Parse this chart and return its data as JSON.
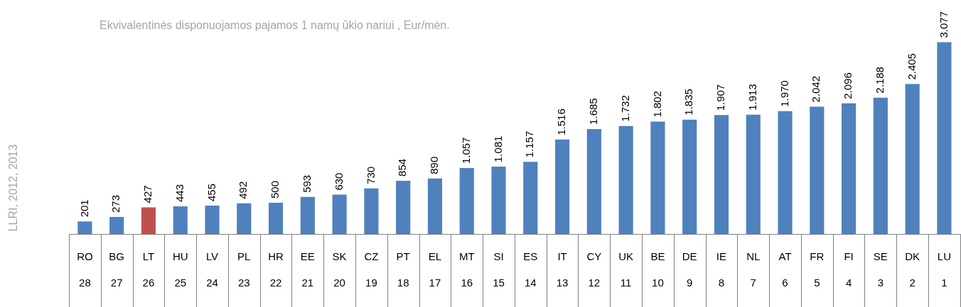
{
  "chart_data": {
    "type": "bar",
    "title": "Ekvivalentinės disponuojamos pajamos 1 namų ūkio nariui , Eur/mėn.",
    "annotations": [
      "LLRI, 2012, 2013"
    ],
    "categories": [
      "RO\n28",
      "BG\n27",
      "LT\n26",
      "HU\n25",
      "LV\n24",
      "PL\n23",
      "HR\n22",
      "EE\n21",
      "SK\n20",
      "CZ\n19",
      "PT\n18",
      "EL\n17",
      "MT\n16",
      "SI\n15",
      "ES\n14",
      "IT\n13",
      "CY\n12",
      "UK\n11",
      "BE\n10",
      "DE\n9",
      "IE\n8",
      "NL\n7",
      "AT\n6",
      "FR\n5",
      "FI\n4",
      "SE\n3",
      "DK\n2",
      "LU\n1"
    ],
    "values": [
      201,
      273,
      427,
      443,
      455,
      492,
      500,
      593,
      630,
      730,
      854,
      890,
      1057,
      1081,
      1157,
      1516,
      1685,
      1732,
      1802,
      1835,
      1907,
      1913,
      1970,
      2042,
      2096,
      2188,
      2405,
      3077
    ],
    "value_labels": [
      "201",
      "273",
      "427",
      "443",
      "455",
      "492",
      "500",
      "593",
      "630",
      "730",
      "854",
      "890",
      "1.057",
      "1.081",
      "1.157",
      "1.516",
      "1.685",
      "1.732",
      "1.802",
      "1.835",
      "1.907",
      "1.913",
      "1.970",
      "2.042",
      "2.096",
      "2.188",
      "2.405",
      "3.077"
    ],
    "colors": [
      "#4f81bd",
      "#4f81bd",
      "#c0504d",
      "#4f81bd",
      "#4f81bd",
      "#4f81bd",
      "#4f81bd",
      "#4f81bd",
      "#4f81bd",
      "#4f81bd",
      "#4f81bd",
      "#4f81bd",
      "#4f81bd",
      "#4f81bd",
      "#4f81bd",
      "#4f81bd",
      "#4f81bd",
      "#4f81bd",
      "#4f81bd",
      "#4f81bd",
      "#4f81bd",
      "#4f81bd",
      "#4f81bd",
      "#4f81bd",
      "#4f81bd",
      "#4f81bd",
      "#4f81bd",
      "#4f81bd"
    ],
    "grid": false,
    "legend": false
  }
}
